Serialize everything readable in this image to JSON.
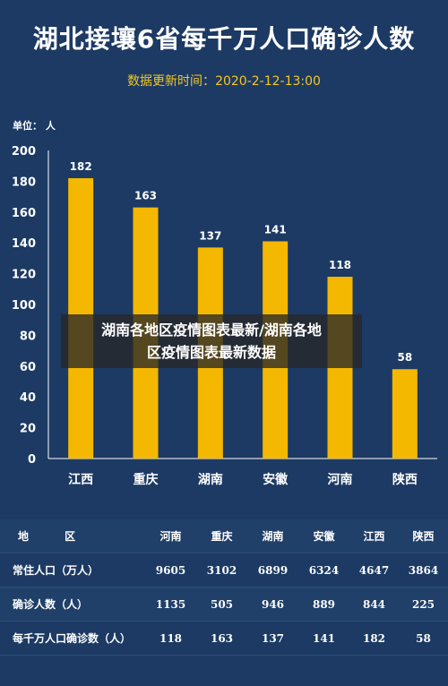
{
  "title": "湖北接壤6省每千万人口确诊人数",
  "update_label": "数据更新时间：",
  "update_time": "2020-2-12-13:00",
  "unit_label": "单位：  人",
  "overlay_text_line1": "湖南各地区疫情图表最新/湖南各地",
  "overlay_text_line2": "区疫情图表最新数据",
  "colors": {
    "background": "#1c3a63",
    "bar": "#f5b800",
    "accent": "#f3c623",
    "text": "#ffffff"
  },
  "chart_data": {
    "type": "bar",
    "title": "湖北接壤6省每千万人口确诊人数",
    "xlabel": "",
    "ylabel": "单位：  人",
    "categories": [
      "江西",
      "重庆",
      "湖南",
      "安徽",
      "河南",
      "陕西"
    ],
    "values": [
      182,
      163,
      137,
      141,
      118,
      58
    ],
    "data_labels": [
      "182",
      "163",
      "137",
      "141",
      "118",
      "58"
    ],
    "ylim": [
      0,
      200
    ],
    "yticks": [
      0,
      20,
      40,
      60,
      80,
      100,
      120,
      140,
      160,
      180,
      200
    ],
    "grid": false
  },
  "table": {
    "header": [
      "地 区",
      "河南",
      "重庆",
      "湖南",
      "安徽",
      "江西",
      "陕西"
    ],
    "rows": [
      [
        "常住人口（万人）",
        "9605",
        "3102",
        "6899",
        "6324",
        "4647",
        "3864"
      ],
      [
        "确诊人数（人）",
        "1135",
        "505",
        "946",
        "889",
        "844",
        "225"
      ],
      [
        "每千万人口确诊数（人）",
        "118",
        "163",
        "137",
        "141",
        "182",
        "58"
      ]
    ]
  }
}
